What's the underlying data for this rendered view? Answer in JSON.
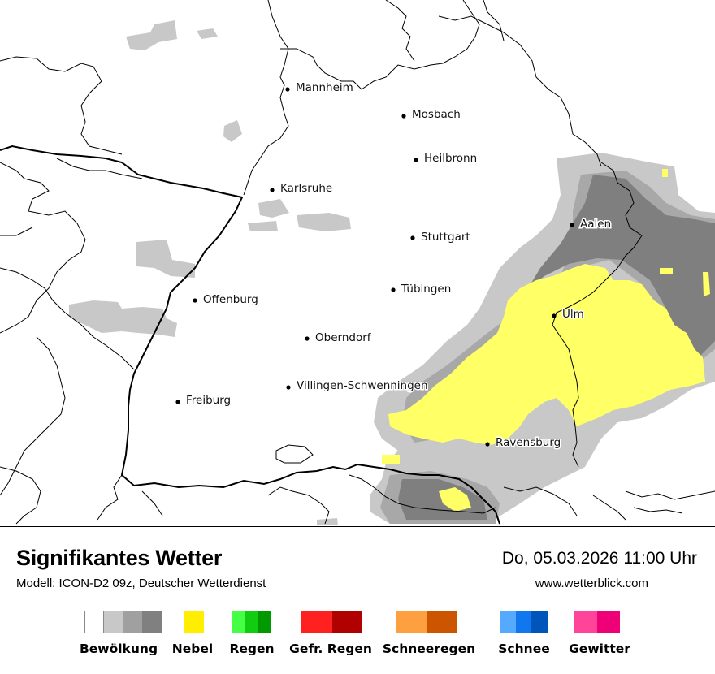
{
  "title": "Signifikantes Wetter",
  "subtitle": "Modell: ICON-D2 09z, Deutscher Wetterdienst",
  "datetime": "Do, 05.03.2026 11:00 Uhr",
  "website": "www.wetterblick.com",
  "cities": [
    {
      "name": "Mannheim"
    },
    {
      "name": "Mosbach"
    },
    {
      "name": "Heilbronn"
    },
    {
      "name": "Karlsruhe"
    },
    {
      "name": "Aalen"
    },
    {
      "name": "Stuttgart"
    },
    {
      "name": "Tübingen"
    },
    {
      "name": "Offenburg"
    },
    {
      "name": "Ulm"
    },
    {
      "name": "Oberndorf"
    },
    {
      "name": "Villingen-Schwenningen"
    },
    {
      "name": "Freiburg"
    },
    {
      "name": "Ravensburg"
    }
  ],
  "legend": [
    {
      "label": "Bewölkung",
      "colors": [
        "#ffffff",
        "#c8c8c8",
        "#a0a0a0",
        "#808080"
      ]
    },
    {
      "label": "Nebel",
      "colors": [
        "#ffee00"
      ]
    },
    {
      "label": "Regen",
      "colors": [
        "#44ff44",
        "#11cc11",
        "#009900"
      ]
    },
    {
      "label": "Gefr. Regen",
      "colors": [
        "#ff2020",
        "#b00000"
      ]
    },
    {
      "label": "Schneeregen",
      "colors": [
        "#ffa040",
        "#cc5500"
      ]
    },
    {
      "label": "Schnee",
      "colors": [
        "#55aaff",
        "#1177ee",
        "#0055bb"
      ]
    },
    {
      "label": "Gewitter",
      "colors": [
        "#ff4499",
        "#ee0077"
      ]
    }
  ],
  "map_colors": {
    "cloud_light": "#c8c8c8",
    "cloud_mid": "#a8a8a8",
    "cloud_dark": "#808080",
    "fog": "#ffff66"
  }
}
